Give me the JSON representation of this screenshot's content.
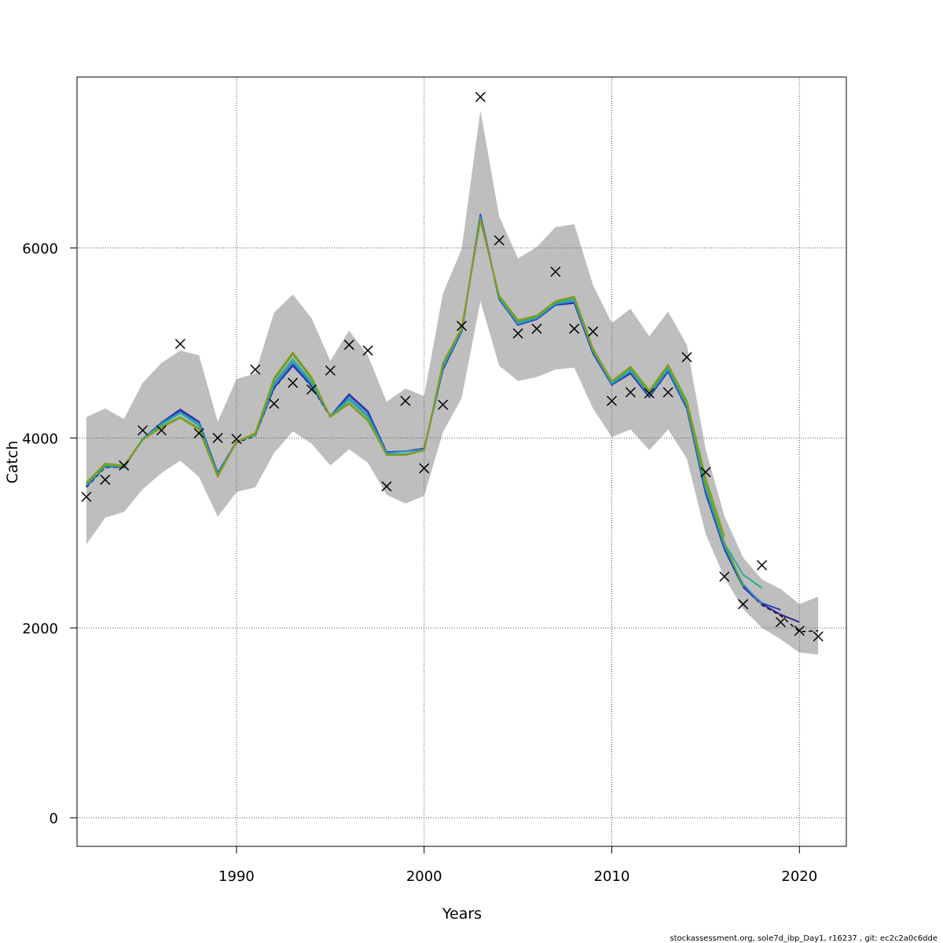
{
  "chart_data": {
    "type": "line",
    "xlabel": "Years",
    "ylabel": "Catch",
    "xlim": [
      1981.5,
      2022.5
    ],
    "ylim": [
      -300,
      7800
    ],
    "xticks": [
      1990,
      2000,
      2010,
      2020
    ],
    "yticks": [
      0,
      2000,
      4000,
      6000
    ],
    "grid": true,
    "footer": "stockassessment.org, sole7d_ibp_Day1, r16237 , git: ec2c2a0c6dde",
    "band_color": "#bebebe",
    "band": {
      "x": [
        1982,
        1983,
        1984,
        1985,
        1986,
        1987,
        1988,
        1989,
        1990,
        1991,
        1992,
        1993,
        1994,
        1995,
        1996,
        1997,
        1998,
        1999,
        2000,
        2001,
        2002,
        2003,
        2004,
        2005,
        2006,
        2007,
        2008,
        2009,
        2010,
        2011,
        2012,
        2013,
        2014,
        2015,
        2016,
        2017,
        2018,
        2019,
        2020,
        2021
      ],
      "upper": [
        4220,
        4310,
        4200,
        4580,
        4790,
        4920,
        4870,
        4170,
        4620,
        4680,
        5320,
        5510,
        5260,
        4810,
        5130,
        4870,
        4380,
        4520,
        4440,
        5520,
        5990,
        7450,
        6330,
        5890,
        6010,
        6220,
        6250,
        5610,
        5210,
        5360,
        5070,
        5330,
        4980,
        3880,
        3180,
        2740,
        2510,
        2410,
        2250,
        2330
      ],
      "lower": [
        2880,
        3160,
        3220,
        3460,
        3630,
        3760,
        3590,
        3170,
        3430,
        3480,
        3840,
        4070,
        3940,
        3710,
        3880,
        3740,
        3400,
        3310,
        3390,
        4060,
        4420,
        5440,
        4760,
        4600,
        4640,
        4720,
        4740,
        4310,
        4010,
        4090,
        3870,
        4090,
        3780,
        2990,
        2530,
        2200,
        2000,
        1880,
        1740,
        1720
      ]
    },
    "observed": {
      "marker": "x",
      "x": [
        1982,
        1983,
        1984,
        1985,
        1986,
        1987,
        1988,
        1989,
        1990,
        1991,
        1992,
        1993,
        1994,
        1995,
        1996,
        1997,
        1998,
        1999,
        2000,
        2001,
        2002,
        2003,
        2004,
        2005,
        2006,
        2007,
        2008,
        2009,
        2010,
        2011,
        2012,
        2013,
        2014,
        2015,
        2016,
        2017,
        2018,
        2019,
        2020,
        2021
      ],
      "y": [
        3380,
        3560,
        3710,
        4080,
        4080,
        4990,
        4050,
        4000,
        3990,
        4720,
        4360,
        4580,
        4510,
        4710,
        4980,
        4920,
        3490,
        4390,
        3680,
        4350,
        5180,
        7590,
        6080,
        5100,
        5150,
        5750,
        5150,
        5120,
        4390,
        4480,
        4470,
        4480,
        4850,
        3640,
        2540,
        2250,
        2660,
        2060,
        1970,
        1910
      ]
    },
    "series": [
      {
        "color": "#000000",
        "dash": true,
        "x": [
          1982,
          1983,
          1984,
          1985,
          1986,
          1987,
          1988,
          1989,
          1990,
          1991,
          1992,
          1993,
          1994,
          1995,
          1996,
          1997,
          1998,
          1999,
          2000,
          2001,
          2002,
          2003,
          2004,
          2005,
          2006,
          2007,
          2008,
          2009,
          2010,
          2011,
          2012,
          2013,
          2014,
          2015,
          2016,
          2017,
          2018,
          2019,
          2020,
          2021
        ],
        "y": [
          3480,
          3690,
          3690,
          3980,
          4150,
          4300,
          4160,
          3620,
          3950,
          4020,
          4520,
          4760,
          4540,
          4220,
          4450,
          4270,
          3850,
          3860,
          3890,
          4720,
          5120,
          6350,
          5460,
          5190,
          5250,
          5400,
          5420,
          4890,
          4560,
          4680,
          4430,
          4700,
          4310,
          3420,
          2830,
          2430,
          2240,
          2130,
          1960,
          1970
        ]
      },
      {
        "color": "#3b1d8e",
        "x": [
          1982,
          1983,
          1984,
          1985,
          1986,
          1987,
          1988,
          1989,
          1990,
          1991,
          1992,
          1993,
          1994,
          1995,
          1996,
          1997,
          1998,
          1999,
          2000,
          2001,
          2002,
          2003,
          2004,
          2005,
          2006,
          2007,
          2008,
          2009,
          2010,
          2011,
          2012,
          2013,
          2014,
          2015,
          2016,
          2017,
          2018,
          2019,
          2020
        ],
        "y": [
          3490,
          3700,
          3690,
          3990,
          4160,
          4300,
          4170,
          3630,
          3960,
          4030,
          4530,
          4770,
          4550,
          4230,
          4460,
          4280,
          3850,
          3860,
          3890,
          4720,
          5120,
          6350,
          5460,
          5190,
          5250,
          5400,
          5420,
          4890,
          4560,
          4680,
          4430,
          4700,
          4310,
          3420,
          2830,
          2430,
          2250,
          2140,
          2060
        ]
      },
      {
        "color": "#1f3fbf",
        "x": [
          1982,
          1983,
          1984,
          1985,
          1986,
          1987,
          1988,
          1989,
          1990,
          1991,
          1992,
          1993,
          1994,
          1995,
          1996,
          1997,
          1998,
          1999,
          2000,
          2001,
          2002,
          2003,
          2004,
          2005,
          2006,
          2007,
          2008,
          2009,
          2010,
          2011,
          2012,
          2013,
          2014,
          2015,
          2016,
          2017,
          2018,
          2019
        ],
        "y": [
          3490,
          3700,
          3690,
          3990,
          4160,
          4290,
          4160,
          3630,
          3960,
          4030,
          4530,
          4760,
          4550,
          4230,
          4450,
          4270,
          3850,
          3860,
          3880,
          4730,
          5120,
          6340,
          5460,
          5190,
          5250,
          5400,
          5430,
          4900,
          4560,
          4690,
          4440,
          4700,
          4320,
          3430,
          2840,
          2440,
          2260,
          2190
        ]
      },
      {
        "color": "#2f8fbf",
        "x": [
          1982,
          1983,
          1984,
          1985,
          1986,
          1987,
          1988,
          1989,
          1990,
          1991,
          1992,
          1993,
          1994,
          1995,
          1996,
          1997,
          1998,
          1999,
          2000,
          2001,
          2002,
          2003,
          2004,
          2005,
          2006,
          2007,
          2008,
          2009,
          2010,
          2011,
          2012,
          2013,
          2014,
          2015,
          2016,
          2017,
          2018
        ],
        "y": [
          3500,
          3700,
          3700,
          3990,
          4150,
          4270,
          4150,
          3620,
          3960,
          4030,
          4560,
          4800,
          4570,
          4230,
          4420,
          4240,
          3840,
          3860,
          3880,
          4740,
          5130,
          6330,
          5470,
          5200,
          5260,
          5410,
          5440,
          4910,
          4570,
          4700,
          4450,
          4720,
          4330,
          3460,
          2860,
          2460,
          2250
        ]
      },
      {
        "color": "#2fa89a",
        "x": [
          1982,
          1983,
          1984,
          1985,
          1986,
          1987,
          1988,
          1989,
          1990,
          1991,
          1992,
          1993,
          1994,
          1995,
          1996,
          1997,
          1998,
          1999,
          2000,
          2001,
          2002,
          2003,
          2004,
          2005,
          2006,
          2007,
          2008,
          2009,
          2010,
          2011,
          2012,
          2013,
          2014,
          2015,
          2016,
          2017,
          2018
        ],
        "y": [
          3510,
          3710,
          3700,
          3990,
          4140,
          4260,
          4130,
          3610,
          3960,
          4030,
          4580,
          4830,
          4590,
          4230,
          4400,
          4220,
          3830,
          3830,
          3870,
          4760,
          5140,
          6310,
          5480,
          5220,
          5270,
          5420,
          5460,
          4920,
          4580,
          4720,
          4470,
          4740,
          4350,
          3490,
          2890,
          2560,
          2420
        ]
      },
      {
        "color": "#55a83a",
        "x": [
          1982,
          1983,
          1984,
          1985,
          1986,
          1987,
          1988,
          1989,
          1990,
          1991,
          1992,
          1993,
          1994,
          1995,
          1996,
          1997,
          1998,
          1999,
          2000,
          2001,
          2002,
          2003,
          2004,
          2005,
          2006,
          2007,
          2008,
          2009,
          2010,
          2011,
          2012,
          2013,
          2014,
          2015,
          2016,
          2017
        ],
        "y": [
          3520,
          3720,
          3700,
          3980,
          4120,
          4220,
          4100,
          3600,
          3960,
          4040,
          4610,
          4880,
          4620,
          4220,
          4370,
          4190,
          3820,
          3820,
          3870,
          4780,
          5150,
          6300,
          5490,
          5230,
          5280,
          5430,
          5480,
          4930,
          4590,
          4740,
          4480,
          4760,
          4370,
          3520,
          2900,
          2430
        ]
      },
      {
        "color": "#8a9a1a",
        "x": [
          1982,
          1983,
          1984,
          1985,
          1986,
          1987,
          1988,
          1989,
          1990,
          1991,
          1992,
          1993,
          1994,
          1995,
          1996,
          1997,
          1998,
          1999,
          2000,
          2001,
          2002,
          2003,
          2004,
          2005,
          2006,
          2007,
          2008,
          2009,
          2010,
          2011,
          2012,
          2013,
          2014,
          2015,
          2016
        ],
        "y": [
          3530,
          3730,
          3710,
          3980,
          4110,
          4210,
          4090,
          3590,
          3960,
          4050,
          4630,
          4900,
          4640,
          4220,
          4360,
          4180,
          3820,
          3820,
          3870,
          4790,
          5160,
          6290,
          5500,
          5240,
          5290,
          5440,
          5490,
          4940,
          4600,
          4750,
          4500,
          4770,
          4390,
          3580,
          2960
        ]
      }
    ]
  }
}
